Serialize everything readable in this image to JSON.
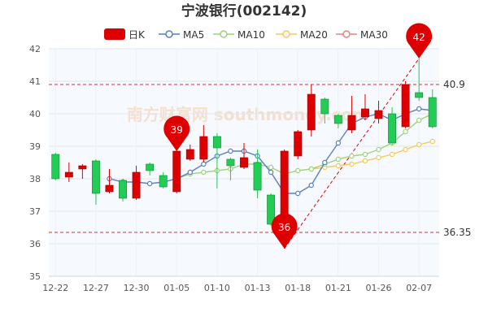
{
  "chart_data": {
    "type": "candlestick",
    "title": "宁波银行(002142)",
    "legend": [
      {
        "label": "日K",
        "color": "#dd0000",
        "kind": "candle"
      },
      {
        "label": "MA5",
        "color": "#5b7fc4",
        "kind": "line"
      },
      {
        "label": "MA10",
        "color": "#9fd27d",
        "kind": "line"
      },
      {
        "label": "MA20",
        "color": "#f5c95a",
        "kind": "line"
      },
      {
        "label": "MA30",
        "color": "#f07f7f",
        "kind": "line"
      }
    ],
    "x_tick_labels": [
      "12-22",
      "12-27",
      "12-30",
      "01-05",
      "01-10",
      "01-13",
      "01-18",
      "01-21",
      "01-26",
      "02-07"
    ],
    "x_tick_index": [
      0,
      3,
      6,
      9,
      12,
      15,
      18,
      21,
      24,
      27
    ],
    "ylim": [
      35,
      42
    ],
    "y_ticks": [
      35,
      36,
      37,
      38,
      39,
      40,
      41,
      42
    ],
    "up_color": "#dd0000",
    "down_color": "#22cc55",
    "candles": [
      {
        "o": 38.75,
        "c": 38.0,
        "h": 38.8,
        "l": 37.95
      },
      {
        "o": 38.05,
        "c": 38.2,
        "h": 38.5,
        "l": 37.9
      },
      {
        "o": 38.3,
        "c": 38.4,
        "h": 38.45,
        "l": 38.0
      },
      {
        "o": 38.55,
        "c": 37.55,
        "h": 38.6,
        "l": 37.2
      },
      {
        "o": 37.6,
        "c": 37.8,
        "h": 38.3,
        "l": 37.55
      },
      {
        "o": 37.95,
        "c": 37.4,
        "h": 38.0,
        "l": 37.3
      },
      {
        "o": 37.4,
        "c": 38.2,
        "h": 38.4,
        "l": 37.35
      },
      {
        "o": 38.45,
        "c": 38.25,
        "h": 38.5,
        "l": 38.1
      },
      {
        "o": 38.1,
        "c": 37.75,
        "h": 38.2,
        "l": 37.7
      },
      {
        "o": 37.6,
        "c": 38.85,
        "h": 38.95,
        "l": 37.55
      },
      {
        "o": 38.6,
        "c": 38.9,
        "h": 39.05,
        "l": 38.55
      },
      {
        "o": 38.6,
        "c": 39.3,
        "h": 39.65,
        "l": 38.5
      },
      {
        "o": 39.3,
        "c": 38.95,
        "h": 39.4,
        "l": 37.7
      },
      {
        "o": 38.6,
        "c": 38.4,
        "h": 38.65,
        "l": 37.95
      },
      {
        "o": 38.35,
        "c": 38.65,
        "h": 39.1,
        "l": 38.3
      },
      {
        "o": 38.5,
        "c": 37.65,
        "h": 38.9,
        "l": 37.4
      },
      {
        "o": 37.5,
        "c": 36.6,
        "h": 37.55,
        "l": 36.55
      },
      {
        "o": 36.8,
        "c": 38.85,
        "h": 38.9,
        "l": 35.85
      },
      {
        "o": 38.7,
        "c": 39.45,
        "h": 39.5,
        "l": 38.6
      },
      {
        "o": 39.5,
        "c": 40.6,
        "h": 40.9,
        "l": 39.3
      },
      {
        "o": 40.45,
        "c": 40.0,
        "h": 40.5,
        "l": 39.7
      },
      {
        "o": 39.95,
        "c": 39.7,
        "h": 40.0,
        "l": 39.55
      },
      {
        "o": 39.5,
        "c": 39.95,
        "h": 40.55,
        "l": 39.4
      },
      {
        "o": 39.9,
        "c": 40.15,
        "h": 40.6,
        "l": 39.8
      },
      {
        "o": 39.85,
        "c": 40.1,
        "h": 40.4,
        "l": 39.7
      },
      {
        "o": 40.0,
        "c": 39.1,
        "h": 40.2,
        "l": 39.05
      },
      {
        "o": 39.6,
        "c": 40.9,
        "h": 41.0,
        "l": 39.55
      },
      {
        "o": 40.65,
        "c": 40.5,
        "h": 41.7,
        "l": 40.4
      },
      {
        "o": 40.5,
        "c": 39.6,
        "h": 40.75,
        "l": 39.55
      }
    ],
    "ma5": [
      null,
      null,
      null,
      null,
      38.0,
      37.9,
      37.9,
      37.85,
      37.9,
      38.0,
      38.2,
      38.45,
      38.7,
      38.85,
      38.85,
      38.7,
      38.2,
      37.55,
      37.55,
      37.8,
      38.5,
      39.1,
      39.7,
      39.9,
      40.0,
      39.8,
      40.0,
      40.15,
      40.1
    ],
    "ma10": [
      null,
      null,
      null,
      null,
      null,
      null,
      null,
      null,
      null,
      38.0,
      38.15,
      38.2,
      38.25,
      38.3,
      38.45,
      38.45,
      38.35,
      38.15,
      38.25,
      38.3,
      38.45,
      38.6,
      38.7,
      38.75,
      38.9,
      39.1,
      39.45,
      39.8,
      40.0
    ],
    "ma20": [
      null,
      null,
      null,
      null,
      null,
      null,
      null,
      null,
      null,
      null,
      null,
      null,
      null,
      null,
      null,
      null,
      null,
      null,
      null,
      38.3,
      38.35,
      38.4,
      38.45,
      38.55,
      38.65,
      38.75,
      38.9,
      39.05,
      39.15
    ],
    "ref_lines": [
      {
        "label": "40.9",
        "value": 40.9
      },
      {
        "label": "36.35",
        "value": 36.35
      }
    ],
    "markers": [
      {
        "label": "39",
        "index": 9,
        "value": 38.85,
        "color": "#dd0000"
      },
      {
        "label": "36",
        "index": 17,
        "value": 35.85,
        "color": "#dd0000"
      },
      {
        "label": "42",
        "index": 27,
        "value": 41.7,
        "color": "#dd0000"
      }
    ],
    "trend_line": {
      "from_index": 17,
      "from_value": 35.85,
      "to_index": 27,
      "to_value": 41.7,
      "color": "#dd0000"
    },
    "watermark": "南方财富网 southmoney.com"
  }
}
